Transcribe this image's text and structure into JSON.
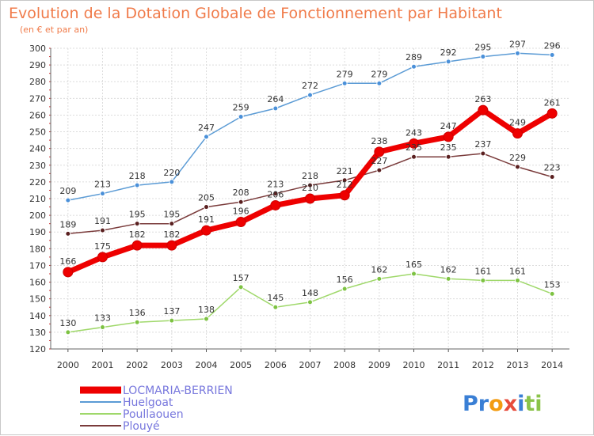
{
  "chart_data": {
    "type": "line",
    "title": "Evolution de la Dotation Globale de Fonctionnement par Habitant",
    "subtitle": "(en € et par an)",
    "x": [
      2000,
      2001,
      2002,
      2003,
      2004,
      2005,
      2006,
      2007,
      2008,
      2009,
      2010,
      2011,
      2012,
      2013,
      2014
    ],
    "ylim": [
      120,
      300
    ],
    "yticks": [
      120,
      130,
      140,
      150,
      160,
      170,
      180,
      190,
      200,
      210,
      220,
      230,
      240,
      250,
      260,
      270,
      280,
      290,
      300
    ],
    "grid": true,
    "legend_position": "bottom-left",
    "series": [
      {
        "name": "Huelgoat",
        "color": "#5b9bd5",
        "point_color": "#4a90d9",
        "width": 1.5,
        "values": [
          209,
          213,
          218,
          220,
          247,
          259,
          264,
          272,
          279,
          279,
          289,
          292,
          295,
          297,
          296
        ],
        "labels": [
          "209",
          "213",
          "218",
          "220",
          "247",
          "259",
          "264",
          "272",
          "279",
          "279",
          "289",
          "292",
          "295",
          "297",
          "296"
        ]
      },
      {
        "name": "Poullaouen",
        "color": "#9fd86a",
        "point_color": "#7dc242",
        "width": 1.5,
        "values": [
          130,
          133,
          136,
          137,
          138,
          157,
          145,
          148,
          156,
          162,
          165,
          162,
          161,
          161,
          153
        ],
        "labels": [
          "130",
          "133",
          "136",
          "137",
          "138",
          "157",
          "145",
          "148",
          "156",
          "162",
          "165",
          "162",
          "161",
          "161",
          "153"
        ]
      },
      {
        "name": "Plouyé",
        "color": "#7a3b3b",
        "point_color": "#5a2020",
        "width": 1.5,
        "values": [
          189,
          191,
          195,
          195,
          205,
          208,
          213,
          218,
          221,
          227,
          235,
          235,
          237,
          229,
          223
        ],
        "labels": [
          "189",
          "191",
          "195",
          "195",
          "205",
          "208",
          "213",
          "218",
          "221",
          "227",
          "235",
          "235",
          "237",
          "229",
          "223"
        ]
      },
      {
        "name": "LOCMARIA-BERRIEN",
        "color": "#ee0000",
        "point_color": "#ee0000",
        "width": 7,
        "values": [
          166,
          175,
          182,
          182,
          191,
          196,
          206,
          210,
          212,
          238,
          243,
          247,
          263,
          249,
          261
        ],
        "labels": [
          "166",
          "175",
          "182",
          "182",
          "191",
          "196",
          "206",
          "210",
          "212",
          "238",
          "243",
          "247",
          "263",
          "249",
          "261"
        ]
      }
    ],
    "legend_order": [
      "LOCMARIA-BERRIEN",
      "Huelgoat",
      "Poullaouen",
      "Plouyé"
    ]
  },
  "logo": {
    "text": "Proxiti",
    "letters": [
      {
        "ch": "P",
        "color": "#3a7fd5"
      },
      {
        "ch": "r",
        "color": "#3a7fd5"
      },
      {
        "ch": "o",
        "color": "#f39c12"
      },
      {
        "ch": "x",
        "color": "#e74c3c"
      },
      {
        "ch": "i",
        "color": "#3a7fd5"
      },
      {
        "ch": "t",
        "color": "#8bc34a"
      },
      {
        "ch": "i",
        "color": "#8bc34a"
      }
    ]
  }
}
